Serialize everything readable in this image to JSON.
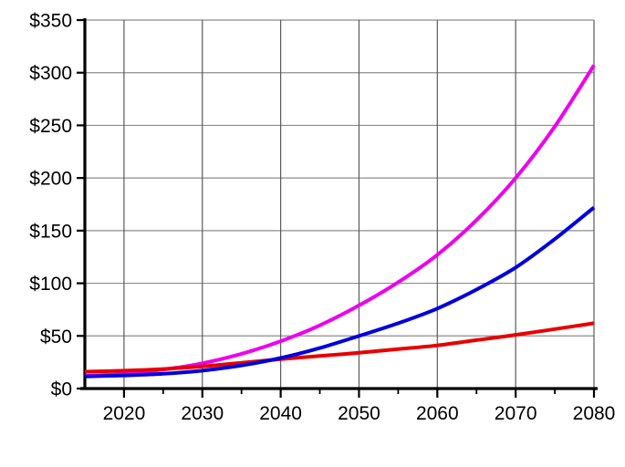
{
  "chart_data": {
    "type": "line",
    "title": "",
    "xlabel": "",
    "ylabel": "",
    "grid": true,
    "legend": "none",
    "xlim": [
      2015,
      2080
    ],
    "ylim": [
      0,
      350
    ],
    "x": [
      2015,
      2020,
      2025,
      2030,
      2035,
      2040,
      2045,
      2050,
      2055,
      2060,
      2065,
      2070,
      2075,
      2080
    ],
    "series": [
      {
        "name": "magenta-series",
        "color": "#ee00ee",
        "values": [
          12,
          14,
          18,
          24,
          33,
          45,
          60,
          79,
          101,
          127,
          160,
          200,
          249,
          307
        ]
      },
      {
        "name": "red-series",
        "color": "#e80000",
        "values": [
          16,
          17,
          18.5,
          21,
          24.5,
          28,
          31,
          34,
          37.5,
          41,
          46,
          51,
          56.5,
          62
        ]
      },
      {
        "name": "blue-series",
        "color": "#0000dd",
        "values": [
          11.5,
          12.5,
          14,
          17,
          22,
          29,
          38.5,
          50,
          62,
          76,
          94,
          115,
          142,
          172
        ]
      }
    ],
    "y_ticks": [
      0,
      50,
      100,
      150,
      200,
      250,
      300,
      350
    ],
    "y_tick_labels": [
      "$0",
      "$50",
      "$100",
      "$150",
      "$200",
      "$250",
      "$300",
      "$350"
    ],
    "x_ticks_major": [
      2020,
      2030,
      2040,
      2050,
      2060,
      2070,
      2080
    ],
    "x_tick_labels": [
      "2020",
      "2030",
      "2040",
      "2050",
      "2060",
      "2070",
      "2080"
    ],
    "x_ticks_minor": [
      2025,
      2035,
      2045,
      2055,
      2065,
      2075
    ]
  },
  "style": {
    "background": "#ffffff",
    "axis_color": "#000000",
    "grid_vertical_color": "#5a5a5a",
    "grid_horizontal_color": "#8c8c8c",
    "text_color": "#000000",
    "line_width": 4,
    "tick_label_font_px": 21
  }
}
